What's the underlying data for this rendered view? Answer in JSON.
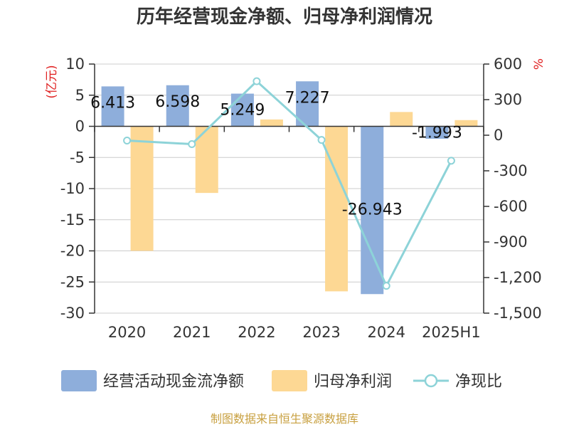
{
  "chart_data": {
    "type": "bar+line",
    "title": "历年经营现金净额、归母净利润情况",
    "categories": [
      "2020",
      "2021",
      "2022",
      "2023",
      "2024",
      "2025H1"
    ],
    "series": [
      {
        "name": "经营活动现金流净额",
        "type": "bar",
        "axis": "left",
        "color": "#8eaedb",
        "values": [
          6.413,
          6.598,
          5.249,
          7.227,
          -26.943,
          -1.993
        ],
        "labels": [
          "6.413",
          "6.598",
          "5.249",
          "7.227",
          "-26.943",
          "-1.993"
        ]
      },
      {
        "name": "归母净利润",
        "type": "bar",
        "axis": "left",
        "color": "#fdd894",
        "values": [
          -20.0,
          -10.7,
          1.1,
          -26.5,
          2.3,
          1.0
        ]
      },
      {
        "name": "净现比",
        "type": "line",
        "axis": "right",
        "color": "#8dd3d8",
        "values": [
          -45,
          -75,
          455,
          -40,
          -1270,
          -215
        ]
      }
    ],
    "left_axis": {
      "label": "(亿元)",
      "min": -30,
      "max": 10,
      "step": 5,
      "ticks": [
        "-30",
        "-25",
        "-20",
        "-15",
        "-10",
        "-5",
        "0",
        "5",
        "10"
      ]
    },
    "right_axis": {
      "label": "%",
      "min": -1500,
      "max": 600,
      "step": 300,
      "ticks": [
        "-1,500",
        "-1,200",
        "-900",
        "-600",
        "-300",
        "0",
        "300",
        "600"
      ]
    },
    "legend": [
      "经营活动现金流净额",
      "归母净利润",
      "净现比"
    ],
    "legend_position": "bottom",
    "grid": true
  },
  "source": "制图数据来自恒生聚源数据库",
  "colors": {
    "accent_red": "#e02020",
    "source_gold": "#c8a040",
    "axis": "#333333",
    "grid": "#cccccc"
  }
}
